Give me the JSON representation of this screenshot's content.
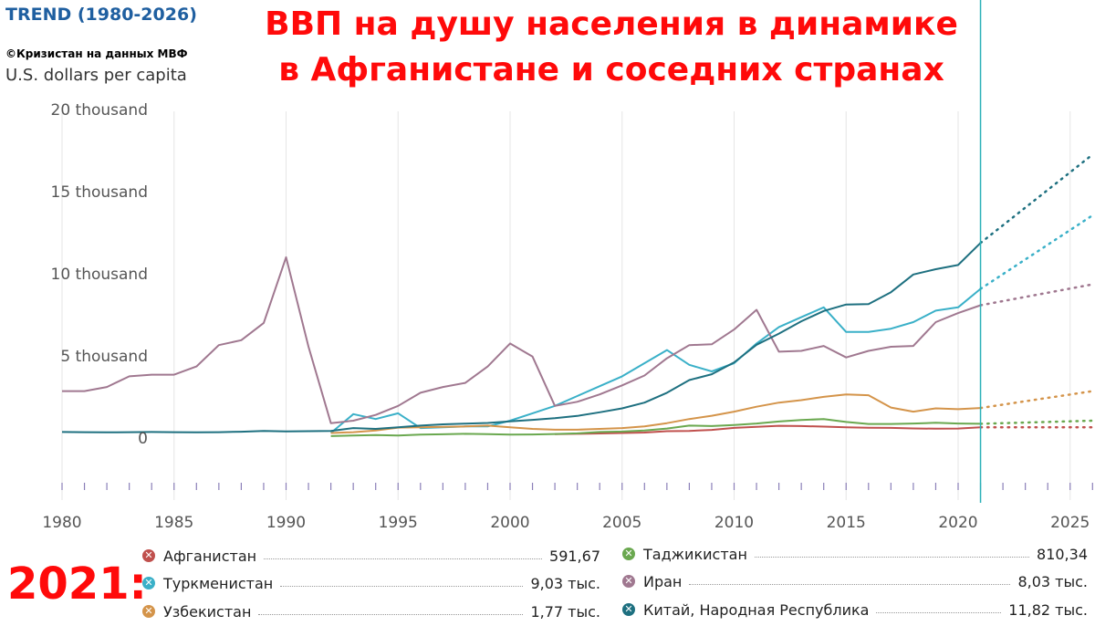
{
  "header": {
    "trend": "TREND (1980-2026)",
    "credit": "©Кризистан на данных МВФ",
    "unit": "U.S. dollars per capita",
    "title_line1": "ВВП на душу населения в динамике",
    "title_line2": "в Афганистане и соседних странах"
  },
  "legend": {
    "year_label": "2021:"
  },
  "chart_data": {
    "type": "line",
    "xlim": [
      1980,
      2026
    ],
    "ylim": [
      -3500,
      20000
    ],
    "x_ticks": [
      "1980",
      "1985",
      "1990",
      "1995",
      "2000",
      "2005",
      "2010",
      "2015",
      "2020",
      "2025"
    ],
    "y_ticks": [
      "0",
      "5 thousand",
      "10 thousand",
      "15 thousand",
      "20 thousand"
    ],
    "grid": "vertical",
    "current_year_line": 2021,
    "series": [
      {
        "name": "Афганистан",
        "value_2021": "591,67",
        "color": "#c0504d",
        "x": [
          2002,
          2003,
          2004,
          2005,
          2006,
          2007,
          2008,
          2009,
          2010,
          2011,
          2012,
          2013,
          2014,
          2015,
          2016,
          2017,
          2018,
          2019,
          2020,
          2021
        ],
        "y": [
          180,
          200,
          220,
          250,
          280,
          360,
          380,
          440,
          560,
          630,
          690,
          670,
          640,
          600,
          570,
          560,
          530,
          510,
          520,
          592
        ],
        "forecast_x": [
          2021,
          2026
        ],
        "forecast_y": [
          592,
          600
        ]
      },
      {
        "name": "Туркменистан",
        "value_2021": "9,03 тыс.",
        "color": "#3ab0c8",
        "x": [
          1992,
          1993,
          1994,
          1995,
          1996,
          1997,
          1998,
          1999,
          2000,
          2001,
          2002,
          2003,
          2004,
          2005,
          2006,
          2007,
          2008,
          2009,
          2010,
          2011,
          2012,
          2013,
          2014,
          2015,
          2016,
          2017,
          2018,
          2019,
          2020,
          2021
        ],
        "y": [
          250,
          1400,
          1100,
          1450,
          550,
          600,
          650,
          650,
          1000,
          1450,
          1900,
          2500,
          3100,
          3700,
          4500,
          5300,
          4400,
          4000,
          4500,
          5700,
          6700,
          7300,
          7900,
          6400,
          6400,
          6600,
          7000,
          7700,
          7900,
          9030
        ],
        "forecast_x": [
          2021,
          2026
        ],
        "forecast_y": [
          9030,
          13500
        ]
      },
      {
        "name": "Узбекистан",
        "value_2021": "1,77 тыс.",
        "color": "#d4944a",
        "x": [
          1992,
          1993,
          1994,
          1995,
          1996,
          1997,
          1998,
          1999,
          2000,
          2001,
          2002,
          2003,
          2004,
          2005,
          2006,
          2007,
          2008,
          2009,
          2010,
          2011,
          2012,
          2013,
          2014,
          2015,
          2016,
          2017,
          2018,
          2019,
          2020,
          2021
        ],
        "y": [
          250,
          300,
          400,
          580,
          600,
          620,
          650,
          700,
          600,
          500,
          450,
          450,
          500,
          550,
          650,
          850,
          1100,
          1300,
          1550,
          1850,
          2100,
          2250,
          2450,
          2600,
          2550,
          1800,
          1550,
          1750,
          1700,
          1770
        ],
        "forecast_x": [
          2021,
          2026
        ],
        "forecast_y": [
          1770,
          2800
        ]
      },
      {
        "name": "Таджикистан",
        "value_2021": "810,34",
        "color": "#6aa84f",
        "x": [
          1992,
          1993,
          1994,
          1995,
          1996,
          1997,
          1998,
          1999,
          2000,
          2001,
          2002,
          2003,
          2004,
          2005,
          2006,
          2007,
          2008,
          2009,
          2010,
          2011,
          2012,
          2013,
          2014,
          2015,
          2016,
          2017,
          2018,
          2019,
          2020,
          2021
        ],
        "y": [
          60,
          100,
          130,
          100,
          150,
          170,
          200,
          180,
          150,
          160,
          190,
          230,
          310,
          340,
          400,
          520,
          700,
          670,
          740,
          830,
          950,
          1040,
          1100,
          920,
          800,
          800,
          830,
          870,
          830,
          810
        ],
        "forecast_x": [
          2021,
          2026
        ],
        "forecast_y": [
          810,
          1000
        ]
      },
      {
        "name": "Иран",
        "value_2021": "8,03 тыс.",
        "color": "#a07890",
        "x": [
          1980,
          1981,
          1982,
          1983,
          1984,
          1985,
          1986,
          1987,
          1988,
          1989,
          1990,
          1991,
          1992,
          1993,
          1994,
          1995,
          1996,
          1997,
          1998,
          1999,
          2000,
          2001,
          2002,
          2003,
          2004,
          2005,
          2006,
          2007,
          2008,
          2009,
          2010,
          2011,
          2012,
          2013,
          2014,
          2015,
          2016,
          2017,
          2018,
          2019,
          2020,
          2021
        ],
        "y": [
          2800,
          2800,
          3050,
          3700,
          3800,
          3800,
          4300,
          5600,
          5900,
          6950,
          10950,
          5500,
          850,
          1000,
          1350,
          1900,
          2700,
          3050,
          3300,
          4300,
          5700,
          4900,
          1900,
          2150,
          2600,
          3150,
          3750,
          4800,
          5600,
          5650,
          6550,
          7750,
          5200,
          5250,
          5550,
          4850,
          5250,
          5500,
          5550,
          7000,
          7550,
          8030
        ],
        "forecast_x": [
          2021,
          2026
        ],
        "forecast_y": [
          8030,
          9300
        ]
      },
      {
        "name": "Китай, Народная Республика",
        "value_2021": "11,82 тыс.",
        "color": "#1e7080",
        "x": [
          1980,
          1981,
          1982,
          1983,
          1984,
          1985,
          1986,
          1987,
          1988,
          1989,
          1990,
          1991,
          1992,
          1993,
          1994,
          1995,
          1996,
          1997,
          1998,
          1999,
          2000,
          2001,
          2002,
          2003,
          2004,
          2005,
          2006,
          2007,
          2008,
          2009,
          2010,
          2011,
          2012,
          2013,
          2014,
          2015,
          2016,
          2017,
          2018,
          2019,
          2020,
          2021
        ],
        "y": [
          310,
          300,
          290,
          300,
          310,
          300,
          290,
          300,
          330,
          380,
          350,
          360,
          380,
          550,
          500,
          600,
          700,
          780,
          820,
          860,
          960,
          1050,
          1150,
          1290,
          1510,
          1750,
          2100,
          2700,
          3470,
          3830,
          4550,
          5620,
          6300,
          7050,
          7680,
          8070,
          8100,
          8820,
          9900,
          10220,
          10480,
          11820
        ],
        "forecast_x": [
          2021,
          2026
        ],
        "forecast_y": [
          11820,
          17200
        ]
      }
    ]
  }
}
